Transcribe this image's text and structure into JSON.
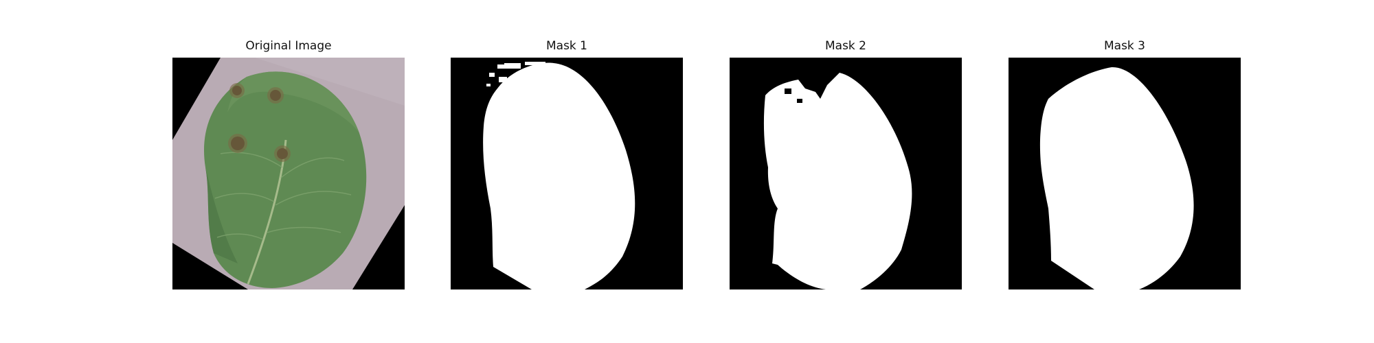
{
  "figure": {
    "panels": [
      {
        "title": "Original Image"
      },
      {
        "title": "Mask 1"
      },
      {
        "title": "Mask 2"
      },
      {
        "title": "Mask 3"
      }
    ]
  },
  "colors": {
    "background": "#000000",
    "mask": "#ffffff",
    "paper": "#b8a9b2",
    "leaf": "#5f8a53",
    "leaf_dark": "#4a7343",
    "lesion": "#4a3b27"
  }
}
